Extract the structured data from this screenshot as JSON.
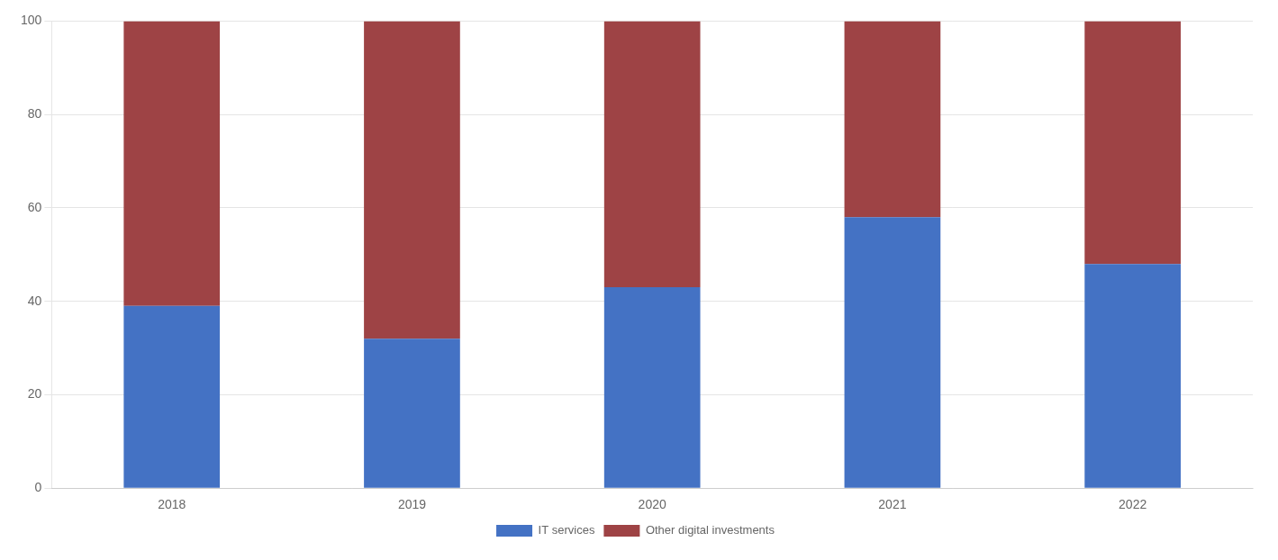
{
  "chart_data": {
    "type": "bar",
    "stacked": true,
    "categories": [
      "2018",
      "2019",
      "2020",
      "2021",
      "2022"
    ],
    "series": [
      {
        "name": "IT services",
        "color": "#4472C4",
        "values": [
          39,
          32,
          43,
          58,
          48
        ]
      },
      {
        "name": "Other digital investments",
        "color": "#9E4345",
        "values": [
          61,
          68,
          57,
          42,
          52
        ]
      }
    ],
    "ylim": [
      0,
      100
    ],
    "yticks": [
      0,
      20,
      40,
      60,
      80,
      100
    ],
    "grid": true,
    "legend": "bottom"
  }
}
